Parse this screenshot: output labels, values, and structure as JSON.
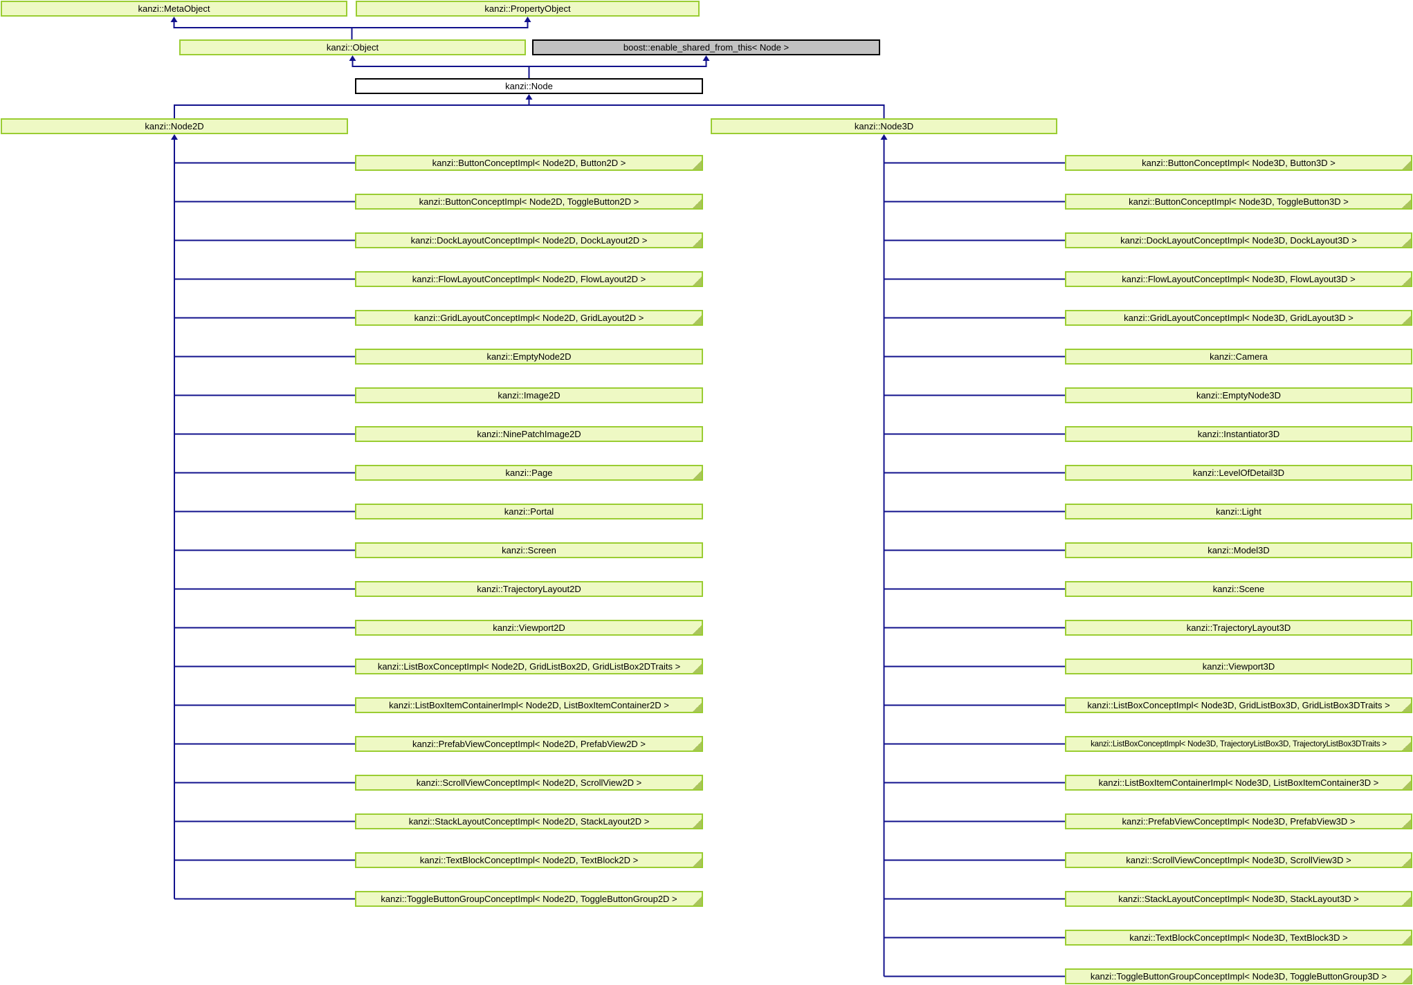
{
  "diagram": {
    "type": "doxygen-inheritance-graph",
    "colors": {
      "class_fill": "#eef9c4",
      "class_border": "#9acd32",
      "external_fill": "#c2c2c2",
      "external_border": "#000000",
      "current_fill": "#ffffff",
      "current_border": "#000000",
      "edge": "#11118c",
      "fold": "#a9c45c",
      "text": "#000000"
    },
    "ancestors": {
      "meta_object": {
        "label": "kanzi::MetaObject"
      },
      "property_object": {
        "label": "kanzi::PropertyObject"
      },
      "object": {
        "label": "kanzi::Object"
      },
      "enable_shared_from_this": {
        "label": "boost::enable_shared_from_this< Node >"
      },
      "node": {
        "label": "kanzi::Node"
      }
    },
    "branches": {
      "node2d": {
        "label": "kanzi::Node2D",
        "children": [
          {
            "label": "kanzi::ButtonConceptImpl< Node2D, Button2D >",
            "truncated": true
          },
          {
            "label": "kanzi::ButtonConceptImpl< Node2D, ToggleButton2D >",
            "truncated": true
          },
          {
            "label": "kanzi::DockLayoutConceptImpl< Node2D, DockLayout2D >",
            "truncated": true
          },
          {
            "label": "kanzi::FlowLayoutConceptImpl< Node2D, FlowLayout2D >",
            "truncated": true
          },
          {
            "label": "kanzi::GridLayoutConceptImpl< Node2D, GridLayout2D >",
            "truncated": true
          },
          {
            "label": "kanzi::EmptyNode2D",
            "truncated": false
          },
          {
            "label": "kanzi::Image2D",
            "truncated": false
          },
          {
            "label": "kanzi::NinePatchImage2D",
            "truncated": false
          },
          {
            "label": "kanzi::Page",
            "truncated": true
          },
          {
            "label": "kanzi::Portal",
            "truncated": false
          },
          {
            "label": "kanzi::Screen",
            "truncated": false
          },
          {
            "label": "kanzi::TrajectoryLayout2D",
            "truncated": false
          },
          {
            "label": "kanzi::Viewport2D",
            "truncated": true
          },
          {
            "label": "kanzi::ListBoxConceptImpl< Node2D, GridListBox2D, GridListBox2DTraits >",
            "truncated": true
          },
          {
            "label": "kanzi::ListBoxItemContainerImpl< Node2D, ListBoxItemContainer2D >",
            "truncated": true
          },
          {
            "label": "kanzi::PrefabViewConceptImpl< Node2D, PrefabView2D >",
            "truncated": true
          },
          {
            "label": "kanzi::ScrollViewConceptImpl< Node2D, ScrollView2D >",
            "truncated": true
          },
          {
            "label": "kanzi::StackLayoutConceptImpl< Node2D, StackLayout2D >",
            "truncated": true
          },
          {
            "label": "kanzi::TextBlockConceptImpl< Node2D, TextBlock2D >",
            "truncated": true
          },
          {
            "label": "kanzi::ToggleButtonGroupConceptImpl< Node2D, ToggleButtonGroup2D >",
            "truncated": true
          }
        ]
      },
      "node3d": {
        "label": "kanzi::Node3D",
        "children": [
          {
            "label": "kanzi::ButtonConceptImpl< Node3D, Button3D >",
            "truncated": true
          },
          {
            "label": "kanzi::ButtonConceptImpl< Node3D, ToggleButton3D >",
            "truncated": true
          },
          {
            "label": "kanzi::DockLayoutConceptImpl< Node3D, DockLayout3D >",
            "truncated": true
          },
          {
            "label": "kanzi::FlowLayoutConceptImpl< Node3D, FlowLayout3D >",
            "truncated": true
          },
          {
            "label": "kanzi::GridLayoutConceptImpl< Node3D, GridLayout3D >",
            "truncated": true
          },
          {
            "label": "kanzi::Camera",
            "truncated": false
          },
          {
            "label": "kanzi::EmptyNode3D",
            "truncated": false
          },
          {
            "label": "kanzi::Instantiator3D",
            "truncated": false
          },
          {
            "label": "kanzi::LevelOfDetail3D",
            "truncated": false
          },
          {
            "label": "kanzi::Light",
            "truncated": false
          },
          {
            "label": "kanzi::Model3D",
            "truncated": false
          },
          {
            "label": "kanzi::Scene",
            "truncated": false
          },
          {
            "label": "kanzi::TrajectoryLayout3D",
            "truncated": false
          },
          {
            "label": "kanzi::Viewport3D",
            "truncated": false
          },
          {
            "label": "kanzi::ListBoxConceptImpl< Node3D, GridListBox3D, GridListBox3DTraits >",
            "truncated": true
          },
          {
            "label": "kanzi::ListBoxConceptImpl< Node3D, TrajectoryListBox3D, TrajectoryListBox3DTraits >",
            "truncated": true,
            "tight": true
          },
          {
            "label": "kanzi::ListBoxItemContainerImpl< Node3D, ListBoxItemContainer3D >",
            "truncated": true
          },
          {
            "label": "kanzi::PrefabViewConceptImpl< Node3D, PrefabView3D >",
            "truncated": true
          },
          {
            "label": "kanzi::ScrollViewConceptImpl< Node3D, ScrollView3D >",
            "truncated": true
          },
          {
            "label": "kanzi::StackLayoutConceptImpl< Node3D, StackLayout3D >",
            "truncated": true
          },
          {
            "label": "kanzi::TextBlockConceptImpl< Node3D, TextBlock3D >",
            "truncated": true
          },
          {
            "label": "kanzi::ToggleButtonGroupConceptImpl< Node3D, ToggleButtonGroup3D >",
            "truncated": true
          }
        ]
      }
    }
  }
}
